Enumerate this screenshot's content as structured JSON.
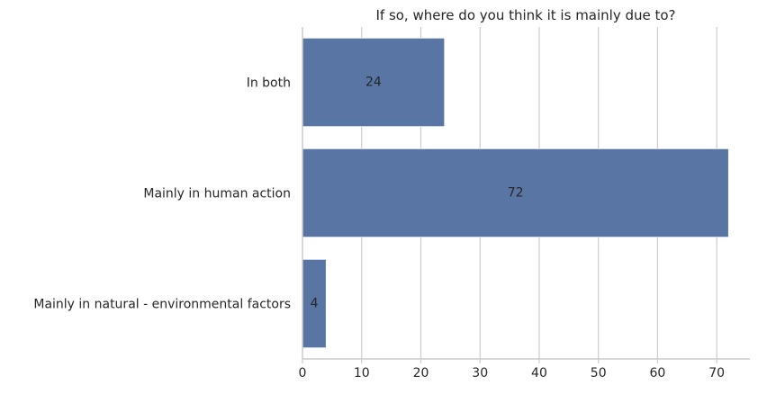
{
  "chart_data": {
    "type": "bar",
    "orientation": "horizontal",
    "title": "If so, where do you think it is mainly due to?",
    "xlabel": "",
    "ylabel": "",
    "categories": [
      "In both",
      "Mainly in human action",
      "Mainly in natural - environmental factors"
    ],
    "values": [
      24,
      72,
      4
    ],
    "data_labels": [
      "24",
      "72",
      "4"
    ],
    "xlim": [
      0,
      75.6
    ],
    "xticks": [
      0,
      10,
      20,
      30,
      40,
      50,
      60,
      70
    ],
    "grid": "vertical",
    "bar_color": "#5875a4"
  }
}
